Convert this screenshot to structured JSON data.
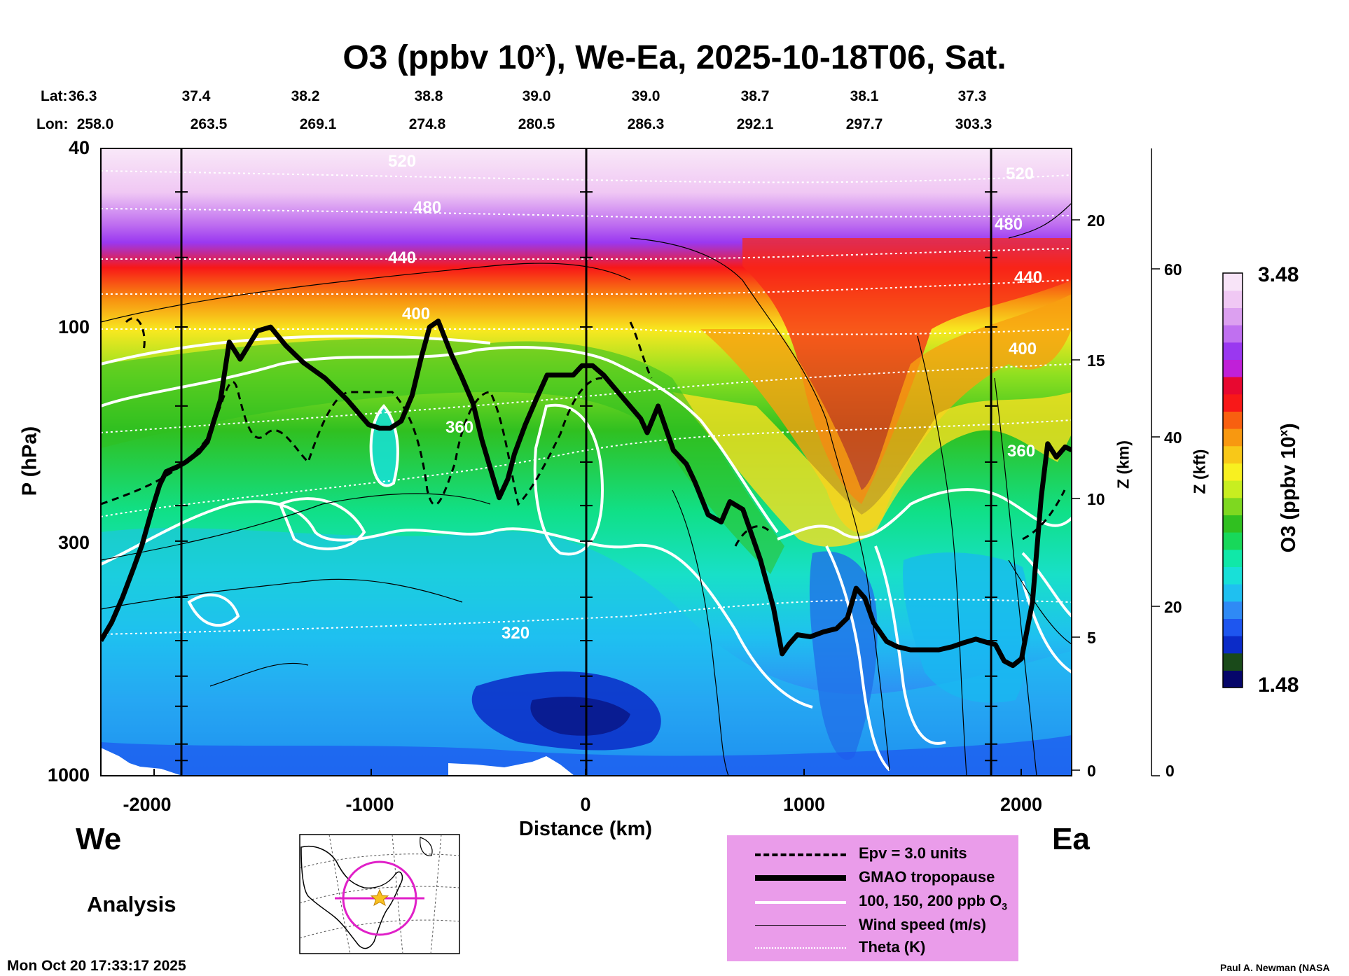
{
  "chart_data": {
    "type": "heatmap",
    "title_prefix": "O3 (ppbv 10",
    "title_sup": "x",
    "title_suffix": "), We-Ea, 2025-10-18T06, Sat.",
    "lat_label": "Lat:",
    "lon_label": "Lon:",
    "lats": [
      "36.3",
      "37.4",
      "38.2",
      "38.8",
      "39.0",
      "39.0",
      "38.7",
      "38.1",
      "37.3"
    ],
    "lons": [
      "258.0",
      "263.5",
      "269.1",
      "274.8",
      "280.5",
      "286.3",
      "292.1",
      "297.7",
      "303.3"
    ],
    "ylabel": "P (hPa)",
    "pressure_ticks": [
      "40",
      "100",
      "300",
      "1000"
    ],
    "ylim": [
      1000,
      40
    ],
    "xlabel": "Distance (km)",
    "x_ticks": [
      "-2000",
      "-1000",
      "0",
      "1000",
      "2000"
    ],
    "xlim": [
      -2230,
      2230
    ],
    "z_km_label": "Z (km)",
    "z_km_ticks": [
      "0",
      "5",
      "10",
      "15",
      "20"
    ],
    "z_kft_label": "Z (kft)",
    "z_kft_ticks": [
      "0",
      "20",
      "40",
      "60"
    ],
    "colorbar_label_prefix": "O3 (ppbv 10",
    "colorbar_label_sup": "x",
    "colorbar_label_suffix": ")",
    "colorbar_max": "3.48",
    "colorbar_min": "1.48",
    "colorbar_range": [
      1.48,
      3.48
    ],
    "colorbar_colors": [
      "#06066a",
      "#1a4a1a",
      "#0b2bc8",
      "#1e56ef",
      "#2f8af5",
      "#1fc0f0",
      "#18e0d8",
      "#10e8a8",
      "#18d85a",
      "#30c020",
      "#7ed820",
      "#c8ee20",
      "#f8f020",
      "#f8c818",
      "#f89810",
      "#f86010",
      "#f81818",
      "#e80830",
      "#c020d8",
      "#9a38f0",
      "#c070f0",
      "#dca0f0",
      "#f0c8f4",
      "#f8e4f8"
    ],
    "vertical_lines_km": [
      -1860,
      0,
      1860
    ],
    "west_label": "We",
    "east_label": "Ea",
    "theta_labels": [
      "320",
      "360",
      "400",
      "440",
      "480",
      "520"
    ],
    "tropopause": [
      [
        -2230,
        500
      ],
      [
        -2180,
        455
      ],
      [
        -2130,
        400
      ],
      [
        -2080,
        345
      ],
      [
        -2040,
        305
      ],
      [
        -2000,
        260
      ],
      [
        -1960,
        225
      ],
      [
        -1930,
        210
      ],
      [
        -1880,
        205
      ],
      [
        -1840,
        200
      ],
      [
        -1780,
        190
      ],
      [
        -1740,
        180
      ],
      [
        -1680,
        145
      ],
      [
        -1640,
        108
      ],
      [
        -1590,
        118
      ],
      [
        -1510,
        102
      ],
      [
        -1450,
        100
      ],
      [
        -1380,
        110
      ],
      [
        -1300,
        120
      ],
      [
        -1200,
        130
      ],
      [
        -1100,
        145
      ],
      [
        -1000,
        165
      ],
      [
        -950,
        168
      ],
      [
        -900,
        168
      ],
      [
        -850,
        162
      ],
      [
        -800,
        142
      ],
      [
        -760,
        118
      ],
      [
        -720,
        100
      ],
      [
        -680,
        97
      ],
      [
        -620,
        115
      ],
      [
        -570,
        130
      ],
      [
        -520,
        148
      ],
      [
        -480,
        178
      ],
      [
        -430,
        215
      ],
      [
        -400,
        240
      ],
      [
        -360,
        218
      ],
      [
        -330,
        192
      ],
      [
        -280,
        165
      ],
      [
        -230,
        145
      ],
      [
        -180,
        128
      ],
      [
        -120,
        128
      ],
      [
        -60,
        128
      ],
      [
        -20,
        122
      ],
      [
        30,
        122
      ],
      [
        80,
        128
      ],
      [
        120,
        135
      ],
      [
        180,
        146
      ],
      [
        250,
        160
      ],
      [
        280,
        172
      ],
      [
        330,
        150
      ],
      [
        400,
        188
      ],
      [
        460,
        202
      ],
      [
        500,
        222
      ],
      [
        560,
        262
      ],
      [
        620,
        272
      ],
      [
        660,
        245
      ],
      [
        720,
        255
      ],
      [
        800,
        330
      ],
      [
        860,
        422
      ],
      [
        900,
        535
      ],
      [
        930,
        510
      ],
      [
        970,
        485
      ],
      [
        1030,
        490
      ],
      [
        1090,
        478
      ],
      [
        1150,
        470
      ],
      [
        1200,
        445
      ],
      [
        1240,
        382
      ],
      [
        1280,
        402
      ],
      [
        1320,
        456
      ],
      [
        1380,
        502
      ],
      [
        1430,
        516
      ],
      [
        1490,
        524
      ],
      [
        1560,
        524
      ],
      [
        1620,
        524
      ],
      [
        1680,
        516
      ],
      [
        1730,
        506
      ],
      [
        1790,
        496
      ],
      [
        1850,
        506
      ],
      [
        1880,
        510
      ],
      [
        1920,
        555
      ],
      [
        1960,
        568
      ],
      [
        2000,
        548
      ],
      [
        2050,
        410
      ],
      [
        2090,
        240
      ],
      [
        2120,
        182
      ],
      [
        2160,
        195
      ],
      [
        2200,
        185
      ],
      [
        2230,
        188
      ]
    ],
    "legend": [
      {
        "label": "Epv = 3.0 units",
        "style": "dashed"
      },
      {
        "label": "GMAO tropopause",
        "style": "thick"
      },
      {
        "label": "100, 150, 200 ppb O",
        "sub": "3",
        "style": "white"
      },
      {
        "label": "Wind speed (m/s)",
        "style": "thin"
      },
      {
        "label": "Theta (K)",
        "style": "dotted"
      }
    ]
  },
  "footer": {
    "analysis_label": "Analysis",
    "timestamp": "Mon Oct 20 17:33:17 2025",
    "credit": "Paul A. Newman (NASA"
  }
}
